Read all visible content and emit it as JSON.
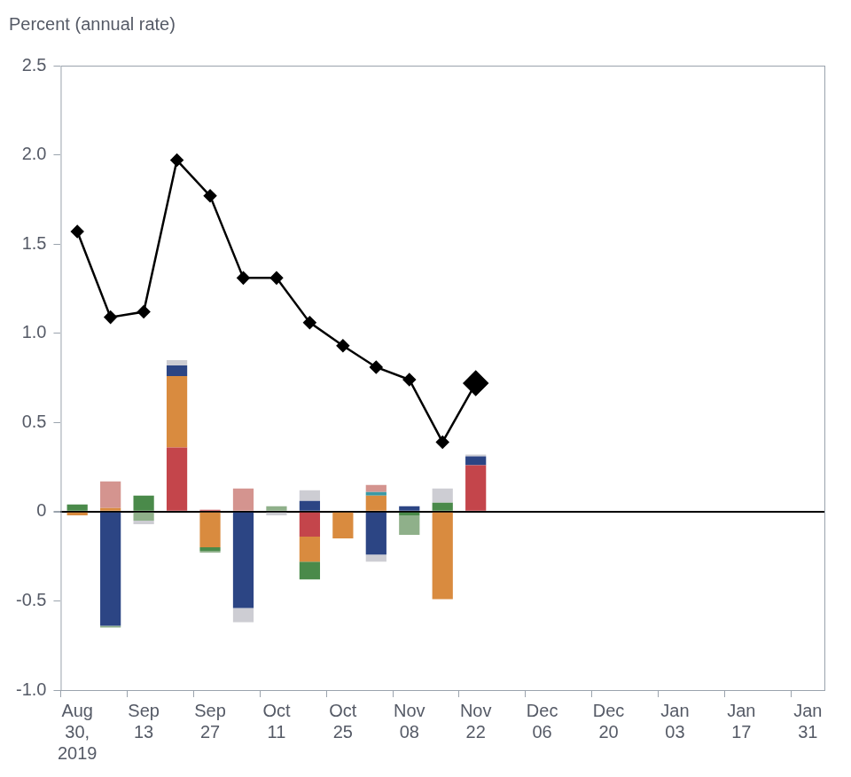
{
  "chart_data": {
    "type": "bar",
    "ylabel": "Percent (annual rate)",
    "stacked": true,
    "grid": false,
    "categories": [
      "Aug 30, 2019",
      null,
      "Sep 13",
      null,
      "Sep 27",
      null,
      "Oct 11",
      null,
      "Oct 25",
      null,
      "Nov 08",
      null,
      "Nov 22",
      null,
      "Dec 06",
      null,
      "Dec 20",
      null,
      "Jan 03",
      null,
      "Jan 17",
      null,
      "Jan 31"
    ],
    "ylim": [
      -1,
      2.5
    ],
    "yticks": [
      {
        "value": -1,
        "label": "-1.0"
      },
      -0.5,
      0,
      0.5,
      {
        "value": 1,
        "label": "1.0"
      },
      1.5,
      {
        "value": 2,
        "label": "2.0"
      },
      2.5
    ],
    "series": [
      {
        "type": "bar",
        "color": "#c4454b",
        "values": [
          null,
          null,
          null,
          0.36,
          0.01,
          null,
          null,
          -0.14,
          null,
          null,
          null,
          null,
          0.26,
          null,
          null,
          null,
          null,
          null,
          null,
          null,
          null,
          null,
          null
        ]
      },
      {
        "type": "bar",
        "color": "#d98b3f",
        "values": [
          -0.02,
          0.02,
          null,
          0.4,
          -0.2,
          null,
          null,
          -0.14,
          -0.15,
          0.09,
          null,
          -0.49,
          null,
          null,
          null,
          null,
          null,
          null,
          null,
          null,
          null,
          null,
          null
        ]
      },
      {
        "type": "bar",
        "color": "#3a9aa6",
        "values": [
          null,
          null,
          null,
          null,
          null,
          null,
          null,
          null,
          null,
          0.02,
          null,
          null,
          null,
          null,
          null,
          null,
          null,
          null,
          null,
          null,
          null,
          null,
          null
        ]
      },
      {
        "type": "bar",
        "color": "#2c4584",
        "values": [
          null,
          -0.64,
          null,
          0.06,
          null,
          -0.54,
          null,
          0.06,
          null,
          -0.24,
          0.03,
          null,
          0.05,
          null,
          null,
          null,
          null,
          null,
          null,
          null,
          null,
          null,
          null
        ]
      },
      {
        "type": "bar",
        "color": "#4a8a4a",
        "values": [
          0.04,
          null,
          0.09,
          null,
          -0.02,
          null,
          null,
          -0.1,
          null,
          null,
          -0.02,
          0.05,
          null,
          null,
          null,
          null,
          null,
          null,
          null,
          null,
          null,
          null,
          null
        ]
      },
      {
        "type": "bar",
        "color": "#8fb08a",
        "values": [
          null,
          -0.01,
          -0.05,
          null,
          -0.01,
          null,
          0.03,
          null,
          null,
          null,
          -0.11,
          null,
          null,
          null,
          null,
          null,
          null,
          null,
          null,
          null,
          null,
          null,
          null
        ]
      },
      {
        "type": "bar",
        "color": "#d4948f",
        "values": [
          null,
          0.15,
          null,
          null,
          null,
          0.13,
          null,
          null,
          null,
          0.04,
          null,
          null,
          null,
          null,
          null,
          null,
          null,
          null,
          null,
          null,
          null,
          null,
          null
        ]
      },
      {
        "type": "bar",
        "color": "#cdcdd3",
        "values": [
          null,
          null,
          -0.02,
          0.03,
          null,
          -0.08,
          -0.02,
          0.06,
          null,
          -0.04,
          null,
          0.08,
          0.01,
          null,
          null,
          null,
          null,
          null,
          null,
          null,
          null,
          null,
          null
        ]
      },
      {
        "type": "line",
        "color": "#000000",
        "marker": "diamond",
        "line_style": "solid",
        "values": [
          1.57,
          1.09,
          1.12,
          1.97,
          1.77,
          1.31,
          1.31,
          1.06,
          0.93,
          0.81,
          0.74,
          0.39,
          0.72,
          null,
          null,
          null,
          null,
          null,
          null,
          null,
          null,
          null,
          null
        ]
      }
    ]
  }
}
